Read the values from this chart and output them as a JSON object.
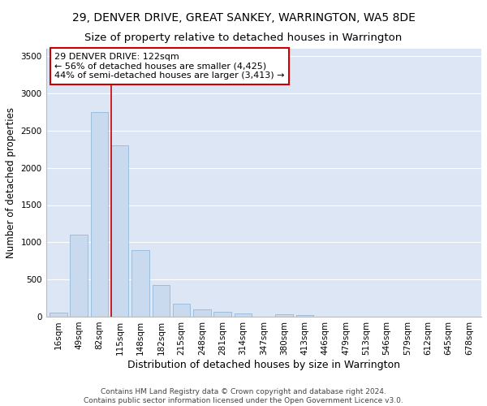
{
  "title": "29, DENVER DRIVE, GREAT SANKEY, WARRINGTON, WA5 8DE",
  "subtitle": "Size of property relative to detached houses in Warrington",
  "xlabel": "Distribution of detached houses by size in Warrington",
  "ylabel": "Number of detached properties",
  "categories": [
    "16sqm",
    "49sqm",
    "82sqm",
    "115sqm",
    "148sqm",
    "182sqm",
    "215sqm",
    "248sqm",
    "281sqm",
    "314sqm",
    "347sqm",
    "380sqm",
    "413sqm",
    "446sqm",
    "479sqm",
    "513sqm",
    "546sqm",
    "579sqm",
    "612sqm",
    "645sqm",
    "678sqm"
  ],
  "values": [
    55,
    1100,
    2750,
    2300,
    890,
    430,
    170,
    100,
    70,
    45,
    0,
    35,
    25,
    0,
    0,
    0,
    0,
    0,
    0,
    0,
    0
  ],
  "bar_color": "#c9d9ee",
  "bar_edge_color": "#93b8d8",
  "background_color": "#dce6f5",
  "grid_color": "#ffffff",
  "vline_x_idx": 3,
  "vline_color": "#cc0000",
  "annotation_line1": "29 DENVER DRIVE: 122sqm",
  "annotation_line2": "← 56% of detached houses are smaller (4,425)",
  "annotation_line3": "44% of semi-detached houses are larger (3,413) →",
  "annotation_box_color": "#ffffff",
  "annotation_box_edge": "#cc0000",
  "ylim": [
    0,
    3600
  ],
  "yticks": [
    0,
    500,
    1000,
    1500,
    2000,
    2500,
    3000,
    3500
  ],
  "footnote": "Contains HM Land Registry data © Crown copyright and database right 2024.\nContains public sector information licensed under the Open Government Licence v3.0.",
  "title_fontsize": 10,
  "subtitle_fontsize": 9.5,
  "xlabel_fontsize": 9,
  "ylabel_fontsize": 8.5,
  "tick_fontsize": 7.5,
  "annotation_fontsize": 8,
  "footnote_fontsize": 6.5
}
